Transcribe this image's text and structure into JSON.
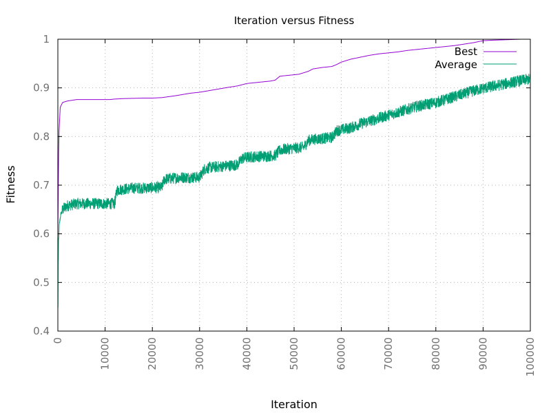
{
  "chart_data": {
    "type": "line",
    "title": "Iteration versus Fitness",
    "xlabel": "Iteration",
    "ylabel": "Fitness",
    "xlim": [
      0,
      100000
    ],
    "ylim": [
      0.4,
      1.0
    ],
    "x_ticks": [
      0,
      10000,
      20000,
      30000,
      40000,
      50000,
      60000,
      70000,
      80000,
      90000,
      100000
    ],
    "y_ticks": [
      0.4,
      0.5,
      0.6,
      0.7,
      0.8,
      0.9,
      1.0
    ],
    "x_tick_labels": [
      "0",
      "10000",
      "20000",
      "30000",
      "40000",
      "50000",
      "60000",
      "70000",
      "80000",
      "90000",
      "100000"
    ],
    "y_tick_labels": [
      "0.4",
      "0.5",
      "0.6",
      "0.7",
      "0.8",
      "0.9",
      "1"
    ],
    "grid": true,
    "legend_position": "top-right",
    "series": [
      {
        "name": "Best",
        "color": "#9400d3",
        "x": [
          0,
          200,
          500,
          1000,
          2000,
          4000,
          6000,
          8000,
          10000,
          11000,
          12000,
          14000,
          18000,
          20000,
          22000,
          25000,
          28000,
          30000,
          33000,
          36000,
          38000,
          40000,
          42000,
          45000,
          46000,
          47000,
          50000,
          51000,
          53000,
          54000,
          56000,
          58000,
          59000,
          60000,
          62000,
          64000,
          66000,
          68000,
          70000,
          72000,
          74000,
          76000,
          78000,
          80000,
          82000,
          84000,
          86000,
          88000,
          90000,
          92000,
          95000,
          98000,
          100000
        ],
        "values": [
          0.6,
          0.8,
          0.86,
          0.87,
          0.873,
          0.876,
          0.876,
          0.876,
          0.876,
          0.876,
          0.877,
          0.878,
          0.879,
          0.879,
          0.88,
          0.884,
          0.889,
          0.891,
          0.896,
          0.901,
          0.904,
          0.909,
          0.911,
          0.914,
          0.916,
          0.924,
          0.927,
          0.928,
          0.934,
          0.939,
          0.942,
          0.944,
          0.948,
          0.953,
          0.959,
          0.963,
          0.967,
          0.97,
          0.972,
          0.974,
          0.977,
          0.979,
          0.981,
          0.983,
          0.985,
          0.987,
          0.99,
          0.993,
          0.997,
          0.998,
          0.999,
          1.0,
          1.0
        ]
      },
      {
        "name": "Average",
        "color": "#009e73",
        "x": [
          0,
          100,
          300,
          600,
          1000,
          2000,
          4000,
          6000,
          8000,
          10000,
          12000,
          12500,
          14000,
          16000,
          18000,
          20000,
          22000,
          22500,
          24000,
          26000,
          28000,
          30000,
          31000,
          32000,
          34000,
          36000,
          38000,
          39000,
          40000,
          42000,
          44000,
          46000,
          47000,
          48000,
          50000,
          52000,
          53000,
          54000,
          56000,
          58000,
          59000,
          60000,
          62000,
          64000,
          66000,
          68000,
          70000,
          72000,
          74000,
          76000,
          78000,
          80000,
          82000,
          84000,
          86000,
          88000,
          90000,
          92000,
          94000,
          96000,
          98000,
          100000
        ],
        "values": [
          0.45,
          0.58,
          0.62,
          0.64,
          0.65,
          0.658,
          0.662,
          0.662,
          0.662,
          0.662,
          0.662,
          0.69,
          0.692,
          0.694,
          0.694,
          0.695,
          0.695,
          0.712,
          0.714,
          0.716,
          0.716,
          0.716,
          0.733,
          0.736,
          0.738,
          0.74,
          0.742,
          0.755,
          0.757,
          0.759,
          0.76,
          0.761,
          0.772,
          0.774,
          0.776,
          0.778,
          0.792,
          0.794,
          0.796,
          0.798,
          0.812,
          0.814,
          0.818,
          0.826,
          0.832,
          0.838,
          0.844,
          0.85,
          0.856,
          0.862,
          0.866,
          0.87,
          0.876,
          0.882,
          0.888,
          0.894,
          0.899,
          0.903,
          0.907,
          0.911,
          0.915,
          0.918
        ],
        "noise_amplitude": 0.012
      }
    ]
  }
}
